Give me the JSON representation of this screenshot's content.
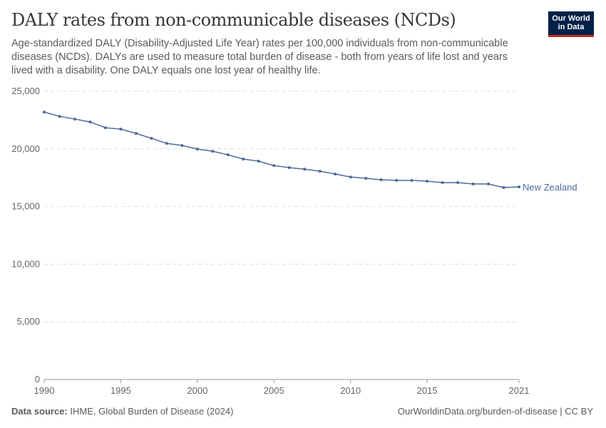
{
  "header": {
    "title": "DALY rates from non-communicable diseases (NCDs)",
    "subtitle": "Age-standardized DALY (Disability-Adjusted Life Year) rates per 100,000 individuals from non-communicable diseases (NCDs). DALYs are used to measure total burden of disease - both from years of life lost and years lived with a disability. One DALY equals one lost year of healthy life.",
    "logo_line1": "Our World",
    "logo_line2": "in Data"
  },
  "footer": {
    "source_label": "Data source:",
    "source": "IHME, Global Burden of Disease (2024)",
    "link": "OurWorldinData.org/burden-of-disease | CC BY"
  },
  "chart_data": {
    "type": "line",
    "title": "DALY rates from non-communicable diseases (NCDs)",
    "xlim": [
      1990,
      2021
    ],
    "ylim": [
      0,
      25000
    ],
    "x_ticks": [
      "1990",
      "1995",
      "2000",
      "2005",
      "2010",
      "2015",
      "2021"
    ],
    "y_ticks": [
      "0",
      "5,000",
      "10,000",
      "15,000",
      "20,000",
      "25,000"
    ],
    "grid": "horizontal dashed",
    "legend": "inline label at line end",
    "series": [
      {
        "name": "New Zealand",
        "color": "#4c6a9c",
        "x": [
          1990,
          1991,
          1992,
          1993,
          1994,
          1995,
          1996,
          1997,
          1998,
          1999,
          2000,
          2001,
          2002,
          2003,
          2004,
          2005,
          2006,
          2007,
          2008,
          2009,
          2010,
          2011,
          2012,
          2013,
          2014,
          2015,
          2016,
          2017,
          2018,
          2019,
          2020,
          2021
        ],
        "values": [
          23200,
          22830,
          22590,
          22340,
          21840,
          21720,
          21350,
          20920,
          20480,
          20300,
          19990,
          19800,
          19490,
          19120,
          18940,
          18560,
          18380,
          18250,
          18070,
          17820,
          17570,
          17450,
          17330,
          17270,
          17270,
          17200,
          17080,
          17080,
          16960,
          16960,
          16650,
          16710
        ]
      }
    ]
  }
}
